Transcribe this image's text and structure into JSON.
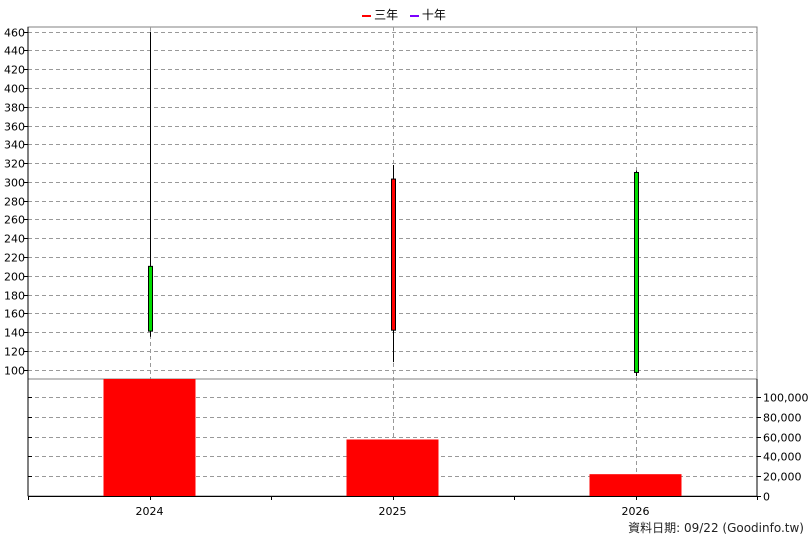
{
  "legend": [
    {
      "name": "三年",
      "color": "#ff0000"
    },
    {
      "name": "十年",
      "color": "#7b00ff"
    }
  ],
  "footer": "資料日期: 09/22  (Goodinfo.tw)",
  "colors": {
    "up": "#00dd00",
    "down": "#ff0000",
    "volume": "#ff0000",
    "grid": "#999999"
  },
  "chart_data": {
    "type": "candlestick+bar",
    "categories": [
      "2024",
      "2025",
      "2026"
    ],
    "price": {
      "yticks": [
        100,
        120,
        140,
        160,
        180,
        200,
        220,
        240,
        260,
        280,
        300,
        320,
        340,
        360,
        380,
        400,
        420,
        440,
        460
      ],
      "ylim": [
        90,
        465
      ],
      "candles": [
        {
          "x": "2024",
          "open": 141,
          "close": 210,
          "high": 460,
          "low": 135
        },
        {
          "x": "2025",
          "open": 303,
          "close": 142,
          "high": 318,
          "low": 108
        },
        {
          "x": "2026",
          "open": 97,
          "close": 310,
          "high": 312,
          "low": 93
        }
      ]
    },
    "volume": {
      "yticks": [
        0,
        20000,
        40000,
        60000,
        80000,
        100000
      ],
      "ytick_labels": [
        "0",
        "20,000",
        "40,000",
        "60,000",
        "80,000",
        "100,000"
      ],
      "ylim": [
        0,
        118000
      ],
      "values": [
        {
          "x": "2024",
          "value": 118000
        },
        {
          "x": "2025",
          "value": 57000
        },
        {
          "x": "2026",
          "value": 22000
        }
      ]
    }
  }
}
